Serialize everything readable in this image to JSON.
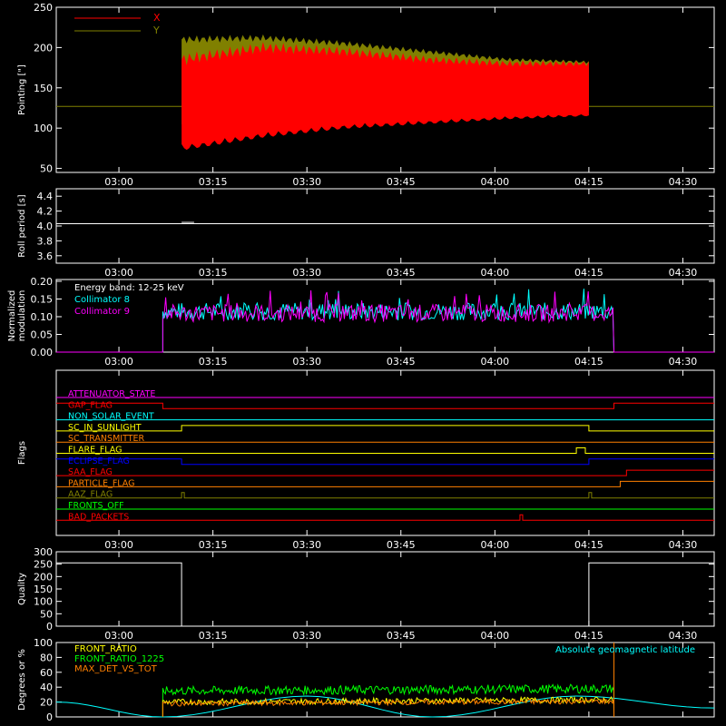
{
  "x_ticks": [
    "03:00",
    "03:15",
    "03:30",
    "03:45",
    "04:00",
    "04:15",
    "04:30"
  ],
  "chart_data": [
    {
      "id": "pointing",
      "type": "area",
      "ylabel": "Pointing [\"]",
      "yticks": [
        "50",
        "100",
        "150",
        "200",
        "250"
      ],
      "ylim": [
        45,
        250
      ],
      "legend": [
        {
          "name": "X",
          "color": "#ff0000"
        },
        {
          "name": "Y",
          "color": "#808000"
        }
      ],
      "series": [
        {
          "name": "X",
          "color": "#ff0000",
          "envelope_min": [
            80,
            95,
            105,
            110,
            115,
            118
          ],
          "envelope_max": [
            185,
            200,
            195,
            185,
            180,
            180
          ]
        },
        {
          "name": "Y",
          "color": "#808000",
          "envelope_min": [
            105,
            110,
            118,
            120,
            122,
            123
          ],
          "envelope_max": [
            210,
            212,
            205,
            195,
            185,
            182
          ]
        }
      ],
      "baseline": 127,
      "active_range": [
        "03:10",
        "04:15"
      ]
    },
    {
      "id": "roll",
      "type": "line",
      "ylabel": "Roll period [s]",
      "yticks": [
        "3.6",
        "3.8",
        "4.0",
        "4.2",
        "4.4"
      ],
      "ylim": [
        3.5,
        4.5
      ],
      "series": [
        {
          "name": "roll",
          "color": "#ffffff",
          "value": 4.03
        }
      ]
    },
    {
      "id": "modulation",
      "type": "line",
      "ylabel": "Normalized modulation",
      "yticks": [
        "0.00",
        "0.05",
        "0.10",
        "0.15",
        "0.20"
      ],
      "ylim": [
        0,
        0.205
      ],
      "annotation": "Energy band: 12-25 keV",
      "legend": [
        {
          "name": "Collimator 8",
          "color": "#00ffff"
        },
        {
          "name": "Collimator 9",
          "color": "#ff00ff"
        }
      ],
      "series": [
        {
          "name": "Collimator 8",
          "color": "#00ffff",
          "mean": 0.115
        },
        {
          "name": "Collimator 9",
          "color": "#ff00ff",
          "mean": 0.11
        }
      ],
      "active_range": [
        "03:07",
        "04:19"
      ]
    },
    {
      "id": "flags",
      "type": "line",
      "ylabel": "Flags",
      "flags": [
        {
          "name": "ATTENUATOR_STATE",
          "color": "#ff00ff"
        },
        {
          "name": "GAP_FLAG",
          "color": "#ff0000"
        },
        {
          "name": "NON_SOLAR_EVENT",
          "color": "#00ffff"
        },
        {
          "name": "SC_IN_SUNLIGHT",
          "color": "#ffff00"
        },
        {
          "name": "SC_TRANSMITTER",
          "color": "#ff8000"
        },
        {
          "name": "FLARE_FLAG",
          "color": "#ffff00"
        },
        {
          "name": "ECLIPSE_FLAG",
          "color": "#0000ff"
        },
        {
          "name": "SAA_FLAG",
          "color": "#ff0000"
        },
        {
          "name": "PARTICLE_FLAG",
          "color": "#ff8000"
        },
        {
          "name": "AAZ_FLAG",
          "color": "#808000"
        },
        {
          "name": "FRONTS_OFF",
          "color": "#00ff00"
        },
        {
          "name": "BAD_PACKETS",
          "color": "#ff0000"
        }
      ]
    },
    {
      "id": "quality",
      "type": "line",
      "ylabel": "Quality",
      "yticks": [
        "0",
        "50",
        "100",
        "150",
        "200",
        "250",
        "300"
      ],
      "ylim": [
        0,
        300
      ],
      "series": [
        {
          "name": "quality",
          "color": "#ffffff",
          "high": 255,
          "low": 0,
          "low_range": [
            "03:10",
            "04:15"
          ]
        }
      ]
    },
    {
      "id": "ratios",
      "type": "line",
      "ylabel": "Degrees or %",
      "yticks": [
        "0",
        "20",
        "40",
        "60",
        "80",
        "100"
      ],
      "ylim": [
        0,
        100
      ],
      "legend": [
        {
          "name": "FRONT_RATIO",
          "color": "#ffff00"
        },
        {
          "name": "FRONT_RATIO_1225",
          "color": "#00ff00"
        },
        {
          "name": "MAX_DET_VS_TOT",
          "color": "#ff8000"
        }
      ],
      "annotation": "Absolute geomagnetic latitude",
      "annotation_color": "#00ffff",
      "series": [
        {
          "name": "FRONT_RATIO",
          "color": "#ffff00",
          "mean": 20
        },
        {
          "name": "FRONT_RATIO_1225",
          "color": "#00ff00",
          "mean": 35
        },
        {
          "name": "MAX_DET_VS_TOT",
          "color": "#ff8000",
          "mean": 18
        },
        {
          "name": "Absolute geomagnetic latitude",
          "color": "#00ffff"
        }
      ],
      "active_range": [
        "03:07",
        "04:19"
      ]
    }
  ]
}
